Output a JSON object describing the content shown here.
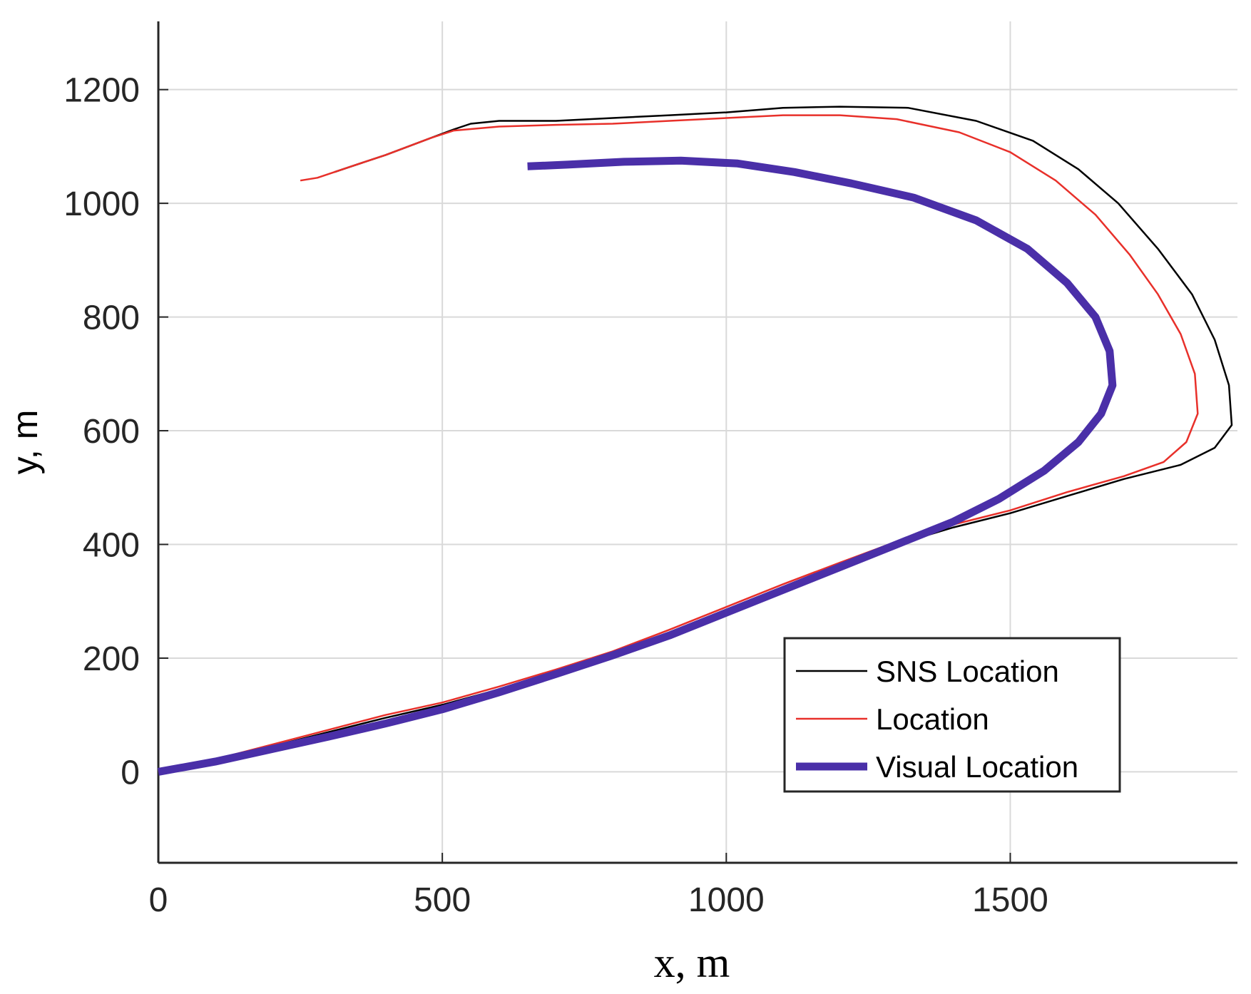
{
  "chart_data": {
    "type": "line",
    "title": "",
    "xlabel": "x, m",
    "ylabel": "y, m",
    "xlim": [
      0,
      1900
    ],
    "ylim": [
      -160,
      1320
    ],
    "xticks": [
      0,
      500,
      1000,
      1500
    ],
    "yticks": [
      0,
      200,
      400,
      600,
      800,
      1000,
      1200
    ],
    "grid": true,
    "legend_position": "bottom-right",
    "series": [
      {
        "name": "SNS Location",
        "color": "#000000",
        "points": [
          [
            0,
            0
          ],
          [
            100,
            20
          ],
          [
            200,
            45
          ],
          [
            300,
            70
          ],
          [
            400,
            95
          ],
          [
            500,
            118
          ],
          [
            600,
            145
          ],
          [
            700,
            175
          ],
          [
            800,
            205
          ],
          [
            900,
            245
          ],
          [
            1000,
            285
          ],
          [
            1100,
            325
          ],
          [
            1200,
            365
          ],
          [
            1300,
            400
          ],
          [
            1400,
            430
          ],
          [
            1500,
            455
          ],
          [
            1600,
            485
          ],
          [
            1700,
            515
          ],
          [
            1800,
            540
          ],
          [
            1860,
            570
          ],
          [
            1890,
            610
          ],
          [
            1885,
            680
          ],
          [
            1860,
            760
          ],
          [
            1820,
            840
          ],
          [
            1760,
            920
          ],
          [
            1690,
            1000
          ],
          [
            1620,
            1060
          ],
          [
            1540,
            1110
          ],
          [
            1440,
            1145
          ],
          [
            1320,
            1168
          ],
          [
            1200,
            1170
          ],
          [
            1100,
            1168
          ],
          [
            1000,
            1160
          ],
          [
            900,
            1155
          ],
          [
            800,
            1150
          ],
          [
            700,
            1145
          ],
          [
            600,
            1145
          ],
          [
            550,
            1140
          ],
          [
            520,
            1130
          ],
          [
            480,
            1115
          ],
          [
            440,
            1100
          ],
          [
            400,
            1085
          ],
          [
            340,
            1065
          ],
          [
            310,
            1055
          ]
        ]
      },
      {
        "name": "Location",
        "color": "#e8302a",
        "points": [
          [
            0,
            0
          ],
          [
            100,
            22
          ],
          [
            200,
            48
          ],
          [
            300,
            74
          ],
          [
            400,
            100
          ],
          [
            500,
            122
          ],
          [
            600,
            150
          ],
          [
            700,
            180
          ],
          [
            800,
            212
          ],
          [
            900,
            250
          ],
          [
            1000,
            290
          ],
          [
            1100,
            330
          ],
          [
            1200,
            368
          ],
          [
            1300,
            405
          ],
          [
            1400,
            435
          ],
          [
            1500,
            460
          ],
          [
            1600,
            492
          ],
          [
            1700,
            520
          ],
          [
            1770,
            545
          ],
          [
            1810,
            580
          ],
          [
            1830,
            630
          ],
          [
            1825,
            700
          ],
          [
            1800,
            770
          ],
          [
            1760,
            840
          ],
          [
            1710,
            910
          ],
          [
            1650,
            980
          ],
          [
            1580,
            1040
          ],
          [
            1500,
            1090
          ],
          [
            1410,
            1125
          ],
          [
            1300,
            1148
          ],
          [
            1200,
            1155
          ],
          [
            1100,
            1155
          ],
          [
            1000,
            1150
          ],
          [
            900,
            1145
          ],
          [
            800,
            1140
          ],
          [
            700,
            1138
          ],
          [
            600,
            1135
          ],
          [
            520,
            1128
          ],
          [
            480,
            1115
          ],
          [
            440,
            1100
          ],
          [
            400,
            1085
          ],
          [
            340,
            1065
          ],
          [
            280,
            1045
          ],
          [
            250,
            1040
          ]
        ]
      },
      {
        "name": "Visual Location",
        "color": "#4a2fa8",
        "points": [
          [
            0,
            0
          ],
          [
            100,
            18
          ],
          [
            200,
            40
          ],
          [
            300,
            62
          ],
          [
            400,
            85
          ],
          [
            500,
            110
          ],
          [
            600,
            140
          ],
          [
            700,
            172
          ],
          [
            800,
            205
          ],
          [
            900,
            240
          ],
          [
            1000,
            280
          ],
          [
            1100,
            320
          ],
          [
            1200,
            360
          ],
          [
            1300,
            400
          ],
          [
            1400,
            440
          ],
          [
            1480,
            480
          ],
          [
            1560,
            530
          ],
          [
            1620,
            580
          ],
          [
            1660,
            630
          ],
          [
            1680,
            680
          ],
          [
            1675,
            740
          ],
          [
            1650,
            800
          ],
          [
            1600,
            860
          ],
          [
            1530,
            920
          ],
          [
            1440,
            970
          ],
          [
            1330,
            1010
          ],
          [
            1220,
            1035
          ],
          [
            1120,
            1055
          ],
          [
            1020,
            1070
          ],
          [
            920,
            1075
          ],
          [
            820,
            1073
          ],
          [
            720,
            1068
          ],
          [
            650,
            1065
          ]
        ]
      }
    ]
  }
}
